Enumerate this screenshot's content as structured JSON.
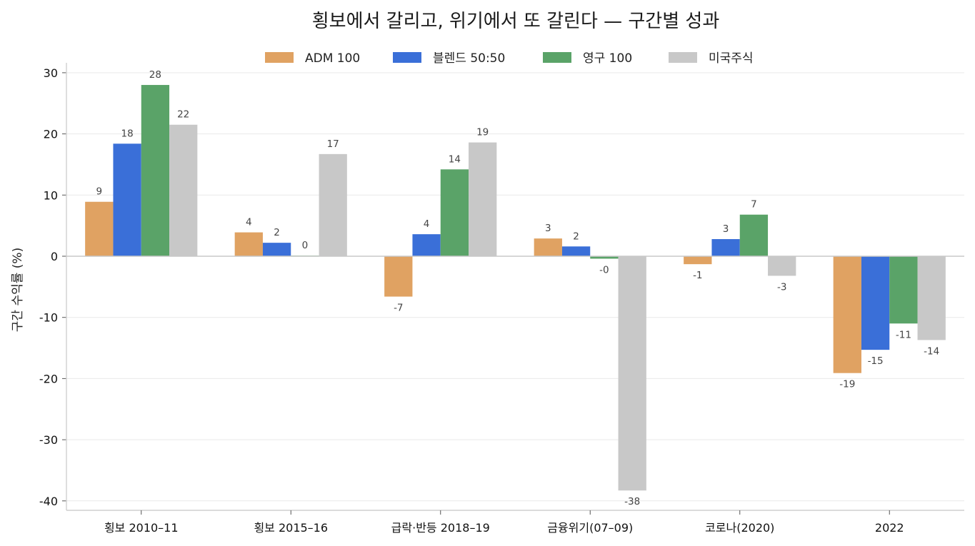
{
  "chart_data": {
    "type": "bar",
    "title": "횡보에서 갈리고, 위기에서 또 갈린다 — 구간별 성과",
    "xlabel": "",
    "ylabel": "구간 수익률 (%)",
    "ylim": [
      -41.5,
      31
    ],
    "yticks": [
      30,
      20,
      10,
      0,
      -10,
      -20,
      -30,
      -40
    ],
    "grid": true,
    "legend_position": "top-center",
    "categories": [
      "횡보 2010–11",
      "횡보 2015–16",
      "급락·반등 2018–19",
      "금융위기(07–09)",
      "코로나(2020)",
      "2022"
    ],
    "series": [
      {
        "name": "ADM 100",
        "color": "#E0A262",
        "values": [
          8.9,
          3.9,
          -6.6,
          2.9,
          -1.3,
          -19.1
        ],
        "labels": [
          "9",
          "4",
          "-7",
          "3",
          "-1",
          "-19"
        ]
      },
      {
        "name": "블렌드 50:50",
        "color": "#3A6FD8",
        "values": [
          18.4,
          2.2,
          3.6,
          1.6,
          2.8,
          -15.3
        ],
        "labels": [
          "18",
          "2",
          "4",
          "2",
          "3",
          "-15"
        ]
      },
      {
        "name": "영구 100",
        "color": "#5AA368",
        "values": [
          28.0,
          0.1,
          14.2,
          -0.4,
          6.8,
          -11.0
        ],
        "labels": [
          "28",
          "0",
          "14",
          "-0",
          "7",
          "-11"
        ]
      },
      {
        "name": "미국주식",
        "color": "#C8C8C8",
        "values": [
          21.5,
          16.7,
          18.6,
          -38.3,
          -3.2,
          -13.7
        ],
        "labels": [
          "22",
          "17",
          "19",
          "-38",
          "-3",
          "-14"
        ]
      }
    ]
  }
}
